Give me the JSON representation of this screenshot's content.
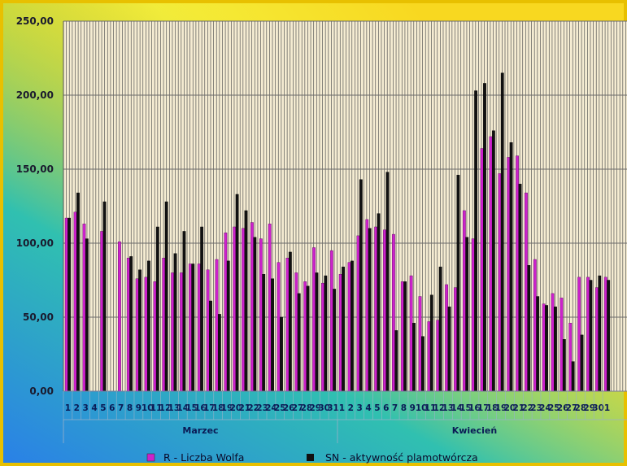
{
  "chart_data": {
    "type": "bar",
    "ylim": [
      0,
      250
    ],
    "yticks": [
      "0,00",
      "50,00",
      "100,00",
      "150,00",
      "200,00",
      "250,00"
    ],
    "grid": true,
    "legend_position": "bottom",
    "colors": {
      "R": "#cc22cc",
      "SN": "#111111",
      "plot_bg": "#f5ecd2"
    },
    "groups": [
      {
        "name": "Marzec",
        "start": 0,
        "count": 31
      },
      {
        "name": "Kwiecień",
        "start": 31,
        "count": 31
      }
    ],
    "categories": [
      "1",
      "2",
      "3",
      "4",
      "5",
      "6",
      "7",
      "8",
      "9",
      "10",
      "11",
      "12",
      "13",
      "14",
      "15",
      "16",
      "17",
      "18",
      "19",
      "20",
      "21",
      "22",
      "23",
      "24",
      "25",
      "26",
      "27",
      "28",
      "29",
      "30",
      "31",
      "1",
      "2",
      "3",
      "4",
      "5",
      "6",
      "7",
      "8",
      "9",
      "10",
      "11",
      "12",
      "13",
      "14",
      "15",
      "16",
      "17",
      "18",
      "19",
      "20",
      "21",
      "22",
      "23",
      "24",
      "25",
      "26",
      "27",
      "28",
      "29",
      "30",
      "1"
    ],
    "series": [
      {
        "name": "R -  Liczba Wolfa",
        "key": "R",
        "values": [
          117,
          121,
          113,
          0,
          108,
          0,
          101,
          90,
          76,
          77,
          74,
          90,
          80,
          80,
          86,
          86,
          82,
          89,
          107,
          111,
          110,
          114,
          103,
          113,
          87,
          90,
          80,
          74,
          97,
          73,
          95,
          79,
          87,
          105,
          116,
          111,
          109,
          106,
          74,
          78,
          64,
          47,
          48,
          72,
          70,
          122,
          103,
          164,
          172,
          147,
          158,
          159,
          134,
          89,
          59,
          66,
          63,
          46,
          77,
          77,
          70,
          77
        ]
      },
      {
        "name": "SN - aktywność plamotwórcza",
        "key": "SN",
        "values": [
          117,
          134,
          103,
          0,
          128,
          0,
          0,
          91,
          82,
          88,
          111,
          128,
          93,
          108,
          86,
          111,
          61,
          52,
          88,
          133,
          122,
          104,
          79,
          76,
          50,
          94,
          66,
          71,
          80,
          78,
          69,
          84,
          88,
          143,
          110,
          120,
          148,
          41,
          74,
          46,
          37,
          65,
          84,
          57,
          146,
          104,
          203,
          208,
          176,
          215,
          168,
          140,
          85,
          64,
          58,
          57,
          35,
          20,
          38,
          75,
          78,
          75
        ]
      }
    ]
  }
}
